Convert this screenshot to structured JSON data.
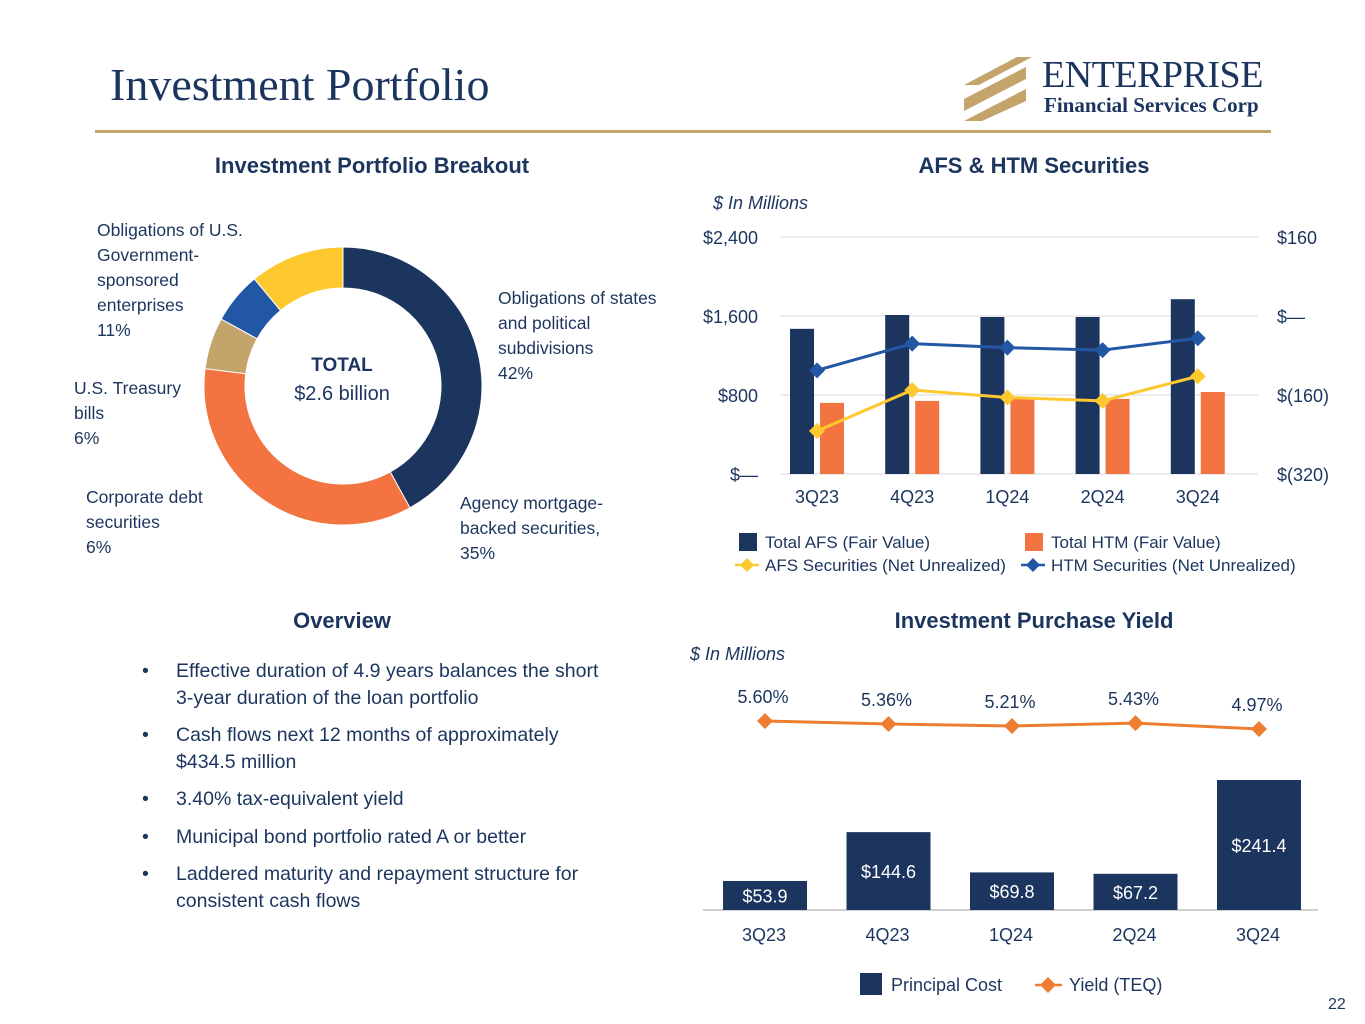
{
  "page": {
    "title": "Investment Portfolio",
    "page_number": "22"
  },
  "logo": {
    "name": "ENTERPRISE",
    "subtitle": "Financial Services Corp",
    "gold": "#c4a46b"
  },
  "colors": {
    "navy": "#1c355e",
    "orange": "#f37440",
    "gold": "#c4a46b",
    "yellow": "#fec82f",
    "blue": "#2257a5",
    "grid": "#d9d9d9"
  },
  "breakout": {
    "title": "Investment Portfolio Breakout",
    "center_label": "TOTAL",
    "center_value": "$2.6 billion"
  },
  "afs_htm": {
    "title": "AFS & HTM Securities",
    "unit": "$ In Millions"
  },
  "yield_section": {
    "title": "Investment Purchase Yield",
    "unit": "$ In Millions"
  },
  "overview": {
    "title": "Overview",
    "bullet_symbol": "•",
    "items": [
      "Effective duration of 4.9 years balances the short 3-year duration of the loan portfolio",
      "Cash flows next 12 months of approximately $434.5 million",
      "3.40% tax-equivalent yield",
      "Municipal bond portfolio rated A or better",
      "Laddered maturity and repayment structure for consistent cash flows"
    ]
  },
  "chart_data": [
    {
      "type": "pie",
      "title": "Investment Portfolio Breakout",
      "donut": true,
      "slices": [
        {
          "label": "Obligations of states and political subdivisions",
          "value": 42,
          "display": "42%",
          "color": "#1c355e"
        },
        {
          "label": "Agency mortgage-backed securities,",
          "value": 35,
          "display": "35%",
          "color": "#f37440"
        },
        {
          "label": "Corporate debt securities",
          "value": 6,
          "display": "6%",
          "color": "#c4a46b"
        },
        {
          "label": "U.S. Treasury bills",
          "value": 6,
          "display": "6%",
          "color": "#2257a5"
        },
        {
          "label": "Obligations of U.S. Government-sponsored enterprises",
          "value": 11,
          "display": "11%",
          "color": "#fec82f"
        }
      ]
    },
    {
      "type": "bar",
      "title": "AFS & HTM Securities",
      "categories": [
        "3Q23",
        "4Q23",
        "1Q24",
        "2Q24",
        "3Q24"
      ],
      "ylim": [
        0,
        2400
      ],
      "yticks": [
        "$—",
        "$800",
        "$1,600",
        "$2,400"
      ],
      "y2lim": [
        -320,
        160
      ],
      "y2ticks": [
        "$(320)",
        "$(160)",
        "$—",
        "$160"
      ],
      "series": [
        {
          "name": "Total AFS (Fair Value)",
          "kind": "bar",
          "axis": "left",
          "color": "#1c355e",
          "values": [
            1470,
            1610,
            1590,
            1590,
            1770
          ]
        },
        {
          "name": "Total HTM (Fair Value)",
          "kind": "bar",
          "axis": "left",
          "color": "#f37440",
          "values": [
            720,
            740,
            760,
            760,
            830
          ]
        },
        {
          "name": "AFS Securities (Net Unrealized)",
          "kind": "line",
          "axis": "right",
          "color": "#fec82f",
          "values": [
            -233,
            -150,
            -165,
            -172,
            -122
          ]
        },
        {
          "name": "HTM Securities (Net Unrealized)",
          "kind": "line",
          "axis": "right",
          "color": "#2257a5",
          "values": [
            -110,
            -56,
            -64,
            -69,
            -45
          ]
        }
      ]
    },
    {
      "type": "bar",
      "title": "Investment Purchase Yield",
      "categories": [
        "3Q23",
        "4Q23",
        "1Q24",
        "2Q24",
        "3Q24"
      ],
      "series": [
        {
          "name": "Principal Cost",
          "kind": "bar",
          "color": "#1c355e",
          "values": [
            53.9,
            144.6,
            69.8,
            67.2,
            241.4
          ],
          "labels": [
            "$53.9",
            "$144.6",
            "$69.8",
            "$67.2",
            "$241.4"
          ]
        },
        {
          "name": "Yield (TEQ)",
          "kind": "line",
          "color": "#ed7d31",
          "values": [
            5.6,
            5.36,
            5.21,
            5.43,
            4.97
          ],
          "labels": [
            "5.60%",
            "5.36%",
            "5.21%",
            "5.43%",
            "4.97%"
          ]
        }
      ]
    }
  ]
}
